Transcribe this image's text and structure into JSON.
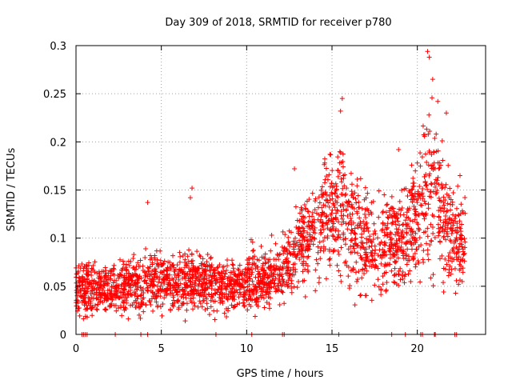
{
  "chart_data": {
    "type": "scatter",
    "title": "Day 309 of 2018, SRMTID for receiver p780",
    "xlabel": "GPS time / hours",
    "ylabel": "SRMTID / TECUs",
    "xlim": [
      0,
      24
    ],
    "ylim": [
      0,
      0.3
    ],
    "xticks": [
      0,
      5,
      10,
      15,
      20
    ],
    "xtick_labels": [
      "0",
      "5",
      "10",
      "15",
      "20"
    ],
    "yticks": [
      0,
      0.05,
      0.1,
      0.15,
      0.2,
      0.25,
      0.3
    ],
    "ytick_labels": [
      "0",
      "0.05",
      "0.1",
      "0.15",
      "0.2",
      "0.25",
      "0.3"
    ],
    "grid": true,
    "marker": "+",
    "color": "#ff0000",
    "envelope": [
      {
        "x": 0.0,
        "center": 0.048,
        "spread": 0.012
      },
      {
        "x": 1.0,
        "center": 0.045,
        "spread": 0.014
      },
      {
        "x": 2.0,
        "center": 0.047,
        "spread": 0.012
      },
      {
        "x": 3.0,
        "center": 0.05,
        "spread": 0.013
      },
      {
        "x": 4.0,
        "center": 0.055,
        "spread": 0.015
      },
      {
        "x": 5.0,
        "center": 0.057,
        "spread": 0.015
      },
      {
        "x": 6.0,
        "center": 0.052,
        "spread": 0.014
      },
      {
        "x": 7.0,
        "center": 0.058,
        "spread": 0.016
      },
      {
        "x": 8.0,
        "center": 0.053,
        "spread": 0.013
      },
      {
        "x": 9.0,
        "center": 0.05,
        "spread": 0.013
      },
      {
        "x": 10.0,
        "center": 0.055,
        "spread": 0.014
      },
      {
        "x": 11.0,
        "center": 0.06,
        "spread": 0.015
      },
      {
        "x": 12.0,
        "center": 0.063,
        "spread": 0.016
      },
      {
        "x": 13.0,
        "center": 0.09,
        "spread": 0.02
      },
      {
        "x": 14.0,
        "center": 0.105,
        "spread": 0.025
      },
      {
        "x": 15.0,
        "center": 0.13,
        "spread": 0.03
      },
      {
        "x": 15.5,
        "center": 0.14,
        "spread": 0.035
      },
      {
        "x": 16.0,
        "center": 0.11,
        "spread": 0.03
      },
      {
        "x": 17.0,
        "center": 0.095,
        "spread": 0.025
      },
      {
        "x": 18.0,
        "center": 0.09,
        "spread": 0.025
      },
      {
        "x": 19.0,
        "center": 0.1,
        "spread": 0.025
      },
      {
        "x": 20.0,
        "center": 0.12,
        "spread": 0.03
      },
      {
        "x": 20.7,
        "center": 0.16,
        "spread": 0.045
      },
      {
        "x": 21.5,
        "center": 0.13,
        "spread": 0.035
      },
      {
        "x": 22.0,
        "center": 0.1,
        "spread": 0.025
      },
      {
        "x": 22.8,
        "center": 0.095,
        "spread": 0.022
      }
    ],
    "outliers": [
      {
        "x": 4.2,
        "y": 0.137
      },
      {
        "x": 6.8,
        "y": 0.152
      },
      {
        "x": 6.7,
        "y": 0.142
      },
      {
        "x": 12.8,
        "y": 0.172
      },
      {
        "x": 15.6,
        "y": 0.245
      },
      {
        "x": 15.5,
        "y": 0.232
      },
      {
        "x": 18.9,
        "y": 0.192
      },
      {
        "x": 20.0,
        "y": 0.178
      },
      {
        "x": 20.6,
        "y": 0.294
      },
      {
        "x": 20.7,
        "y": 0.288
      },
      {
        "x": 20.9,
        "y": 0.265
      },
      {
        "x": 21.2,
        "y": 0.242
      },
      {
        "x": 21.7,
        "y": 0.23
      },
      {
        "x": 22.5,
        "y": 0.165
      },
      {
        "x": 6.4,
        "y": 0.014
      },
      {
        "x": 3.7,
        "y": 0.02
      },
      {
        "x": 8.7,
        "y": 0.022
      }
    ],
    "zero_points_x": [
      0.35,
      0.45,
      0.55,
      0.65,
      2.3,
      3.8,
      4.2,
      8.2,
      10.3,
      12.1,
      12.2,
      15.4,
      18.5,
      19.3,
      20.2,
      20.3,
      21.0,
      21.05,
      22.2,
      22.3
    ]
  }
}
